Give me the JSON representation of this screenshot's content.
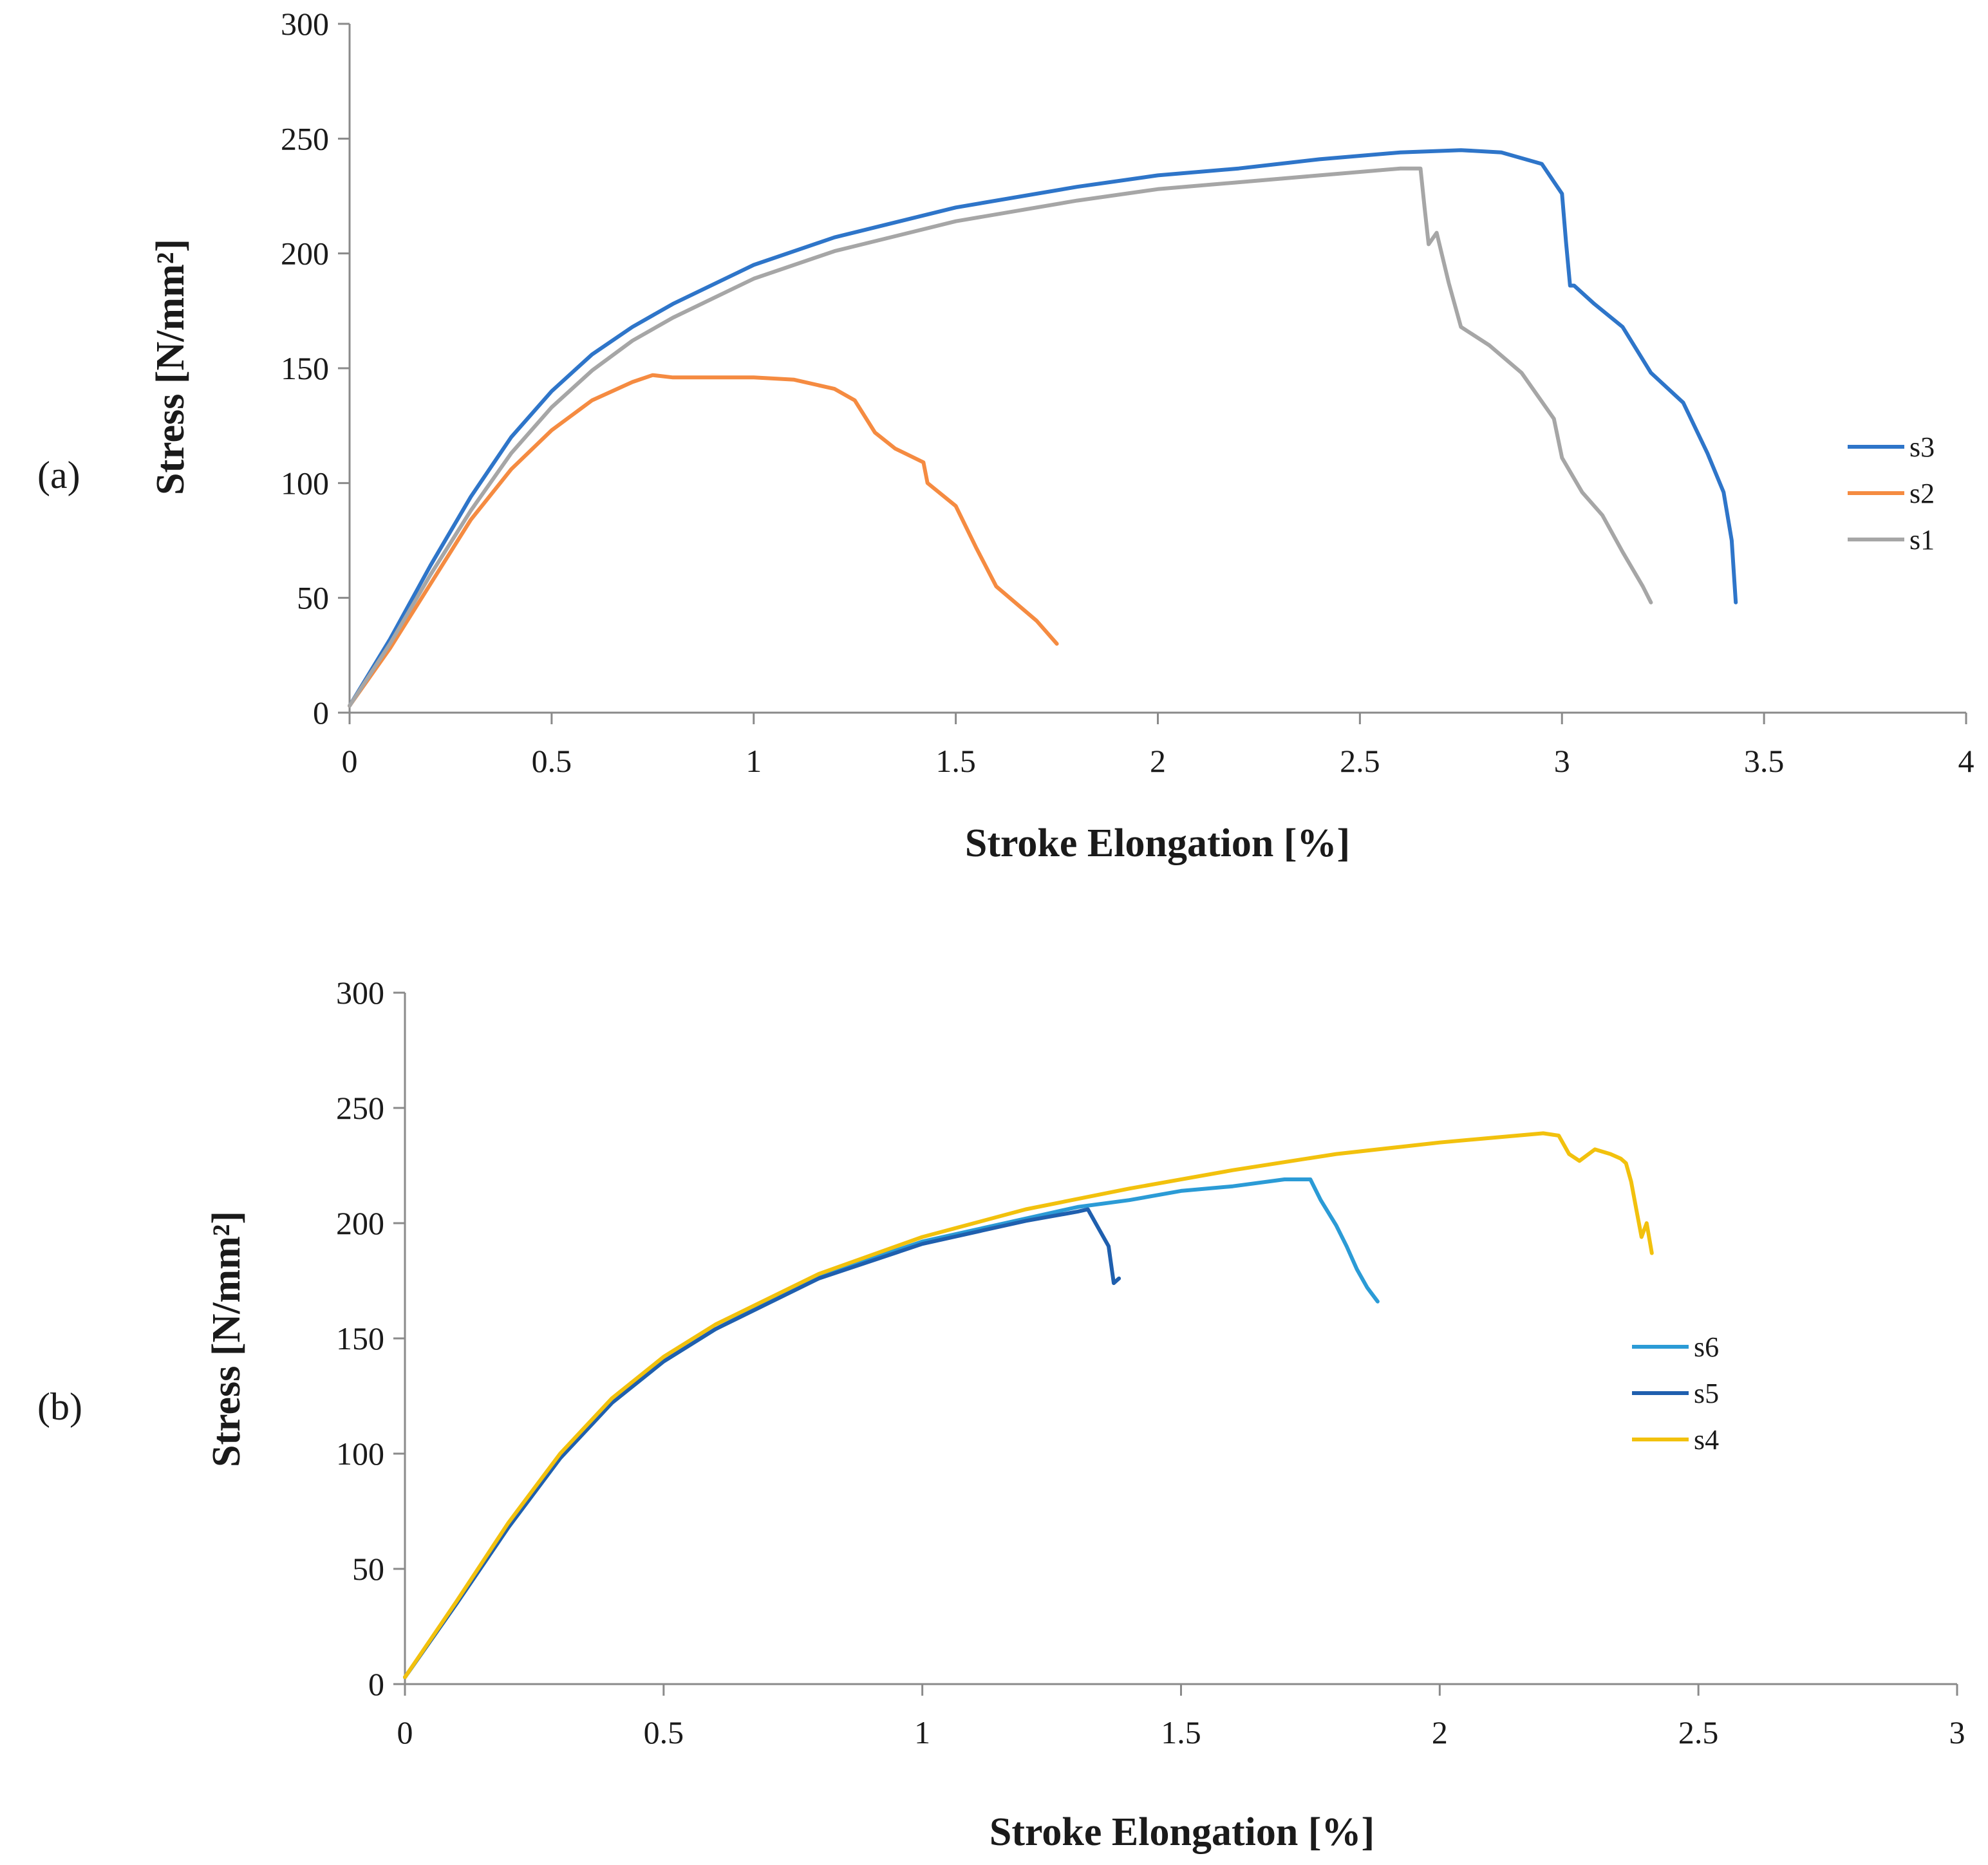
{
  "chart_data": [
    {
      "type": "line",
      "panel_label": "(a)",
      "title": "",
      "xlabel": "Stroke Elongation [%]",
      "ylabel": "Stress   [N/mm²]",
      "xlim": [
        0,
        4
      ],
      "ylim": [
        0,
        300
      ],
      "xticks": [
        0,
        0.5,
        1,
        1.5,
        2,
        2.5,
        3,
        3.5,
        4
      ],
      "xtick_labels": [
        "0",
        "0.5",
        "1",
        "1.5",
        "2",
        "2.5",
        "3",
        "3.5",
        "4"
      ],
      "yticks": [
        0,
        50,
        100,
        150,
        200,
        250,
        300
      ],
      "ytick_labels": [
        "0",
        "50",
        "100",
        "150",
        "200",
        "250",
        "300"
      ],
      "grid": false,
      "legend": "right",
      "series": [
        {
          "name": "s3",
          "color": "#2e75c9",
          "x": [
            0,
            0.1,
            0.2,
            0.3,
            0.4,
            0.5,
            0.6,
            0.7,
            0.8,
            1.0,
            1.2,
            1.5,
            1.8,
            2.0,
            2.2,
            2.4,
            2.6,
            2.75,
            2.85,
            2.95,
            3.0,
            3.01,
            3.02,
            3.03,
            3.08,
            3.15,
            3.22,
            3.3,
            3.36,
            3.4,
            3.42,
            3.43
          ],
          "y": [
            3,
            32,
            64,
            94,
            120,
            140,
            156,
            168,
            178,
            195,
            207,
            220,
            229,
            234,
            237,
            241,
            244,
            245,
            244,
            239,
            226,
            205,
            186,
            186,
            178,
            168,
            148,
            135,
            113,
            96,
            75,
            48
          ]
        },
        {
          "name": "s2",
          "color": "#f58b41",
          "x": [
            0,
            0.1,
            0.2,
            0.3,
            0.4,
            0.5,
            0.6,
            0.7,
            0.75,
            0.8,
            1.0,
            1.1,
            1.2,
            1.25,
            1.3,
            1.35,
            1.42,
            1.43,
            1.5,
            1.55,
            1.6,
            1.7,
            1.75
          ],
          "y": [
            3,
            28,
            56,
            84,
            106,
            123,
            136,
            144,
            147,
            146,
            146,
            145,
            141,
            136,
            122,
            115,
            109,
            100,
            90,
            72,
            55,
            40,
            30
          ]
        },
        {
          "name": "s1",
          "color": "#a6a6a6",
          "x": [
            0,
            0.1,
            0.2,
            0.3,
            0.4,
            0.5,
            0.6,
            0.7,
            0.8,
            1.0,
            1.2,
            1.5,
            1.8,
            2.0,
            2.2,
            2.4,
            2.6,
            2.65,
            2.66,
            2.67,
            2.69,
            2.72,
            2.75,
            2.82,
            2.9,
            2.98,
            3.0,
            3.05,
            3.1,
            3.15,
            3.2,
            3.22
          ],
          "y": [
            3,
            30,
            60,
            88,
            113,
            133,
            149,
            162,
            172,
            189,
            201,
            214,
            223,
            228,
            231,
            234,
            237,
            237,
            220,
            204,
            209,
            187,
            168,
            160,
            148,
            128,
            111,
            96,
            86,
            70,
            55,
            48
          ]
        }
      ]
    },
    {
      "type": "line",
      "panel_label": "(b)",
      "title": "",
      "xlabel": "Stroke Elongation [%]",
      "ylabel": "Stress   [N/mm²]",
      "xlim": [
        0,
        3
      ],
      "ylim": [
        0,
        300
      ],
      "xticks": [
        0,
        0.5,
        1,
        1.5,
        2,
        2.5,
        3
      ],
      "xtick_labels": [
        "0",
        "0.5",
        "1",
        "1.5",
        "2",
        "2.5",
        "3"
      ],
      "yticks": [
        0,
        50,
        100,
        150,
        200,
        250,
        300
      ],
      "ytick_labels": [
        "0",
        "50",
        "100",
        "150",
        "200",
        "250",
        "300"
      ],
      "grid": false,
      "legend": "right",
      "series": [
        {
          "name": "s6",
          "color": "#2b9bd6",
          "x": [
            0,
            0.1,
            0.2,
            0.3,
            0.4,
            0.5,
            0.6,
            0.8,
            1.0,
            1.2,
            1.3,
            1.4,
            1.5,
            1.6,
            1.7,
            1.75,
            1.77,
            1.8,
            1.82,
            1.84,
            1.86,
            1.88
          ],
          "y": [
            3,
            35,
            68,
            98,
            122,
            140,
            154,
            177,
            192,
            202,
            207,
            210,
            214,
            216,
            219,
            219,
            210,
            199,
            190,
            180,
            172,
            166
          ]
        },
        {
          "name": "s5",
          "color": "#1f5fae",
          "x": [
            0,
            0.1,
            0.2,
            0.3,
            0.4,
            0.5,
            0.6,
            0.8,
            1.0,
            1.2,
            1.3,
            1.32,
            1.34,
            1.36,
            1.37,
            1.38
          ],
          "y": [
            3,
            35,
            68,
            98,
            122,
            140,
            154,
            176,
            191,
            201,
            205,
            206,
            198,
            190,
            174,
            176
          ]
        },
        {
          "name": "s4",
          "color": "#f2c10d",
          "x": [
            0,
            0.1,
            0.2,
            0.3,
            0.4,
            0.5,
            0.6,
            0.8,
            1.0,
            1.2,
            1.4,
            1.6,
            1.8,
            2.0,
            2.1,
            2.2,
            2.23,
            2.25,
            2.27,
            2.3,
            2.33,
            2.35,
            2.36,
            2.37,
            2.38,
            2.39,
            2.4,
            2.41
          ],
          "y": [
            3,
            36,
            70,
            100,
            124,
            142,
            156,
            178,
            194,
            206,
            215,
            223,
            230,
            235,
            237,
            239,
            238,
            230,
            227,
            232,
            230,
            228,
            226,
            218,
            206,
            194,
            200,
            187
          ]
        }
      ]
    }
  ]
}
